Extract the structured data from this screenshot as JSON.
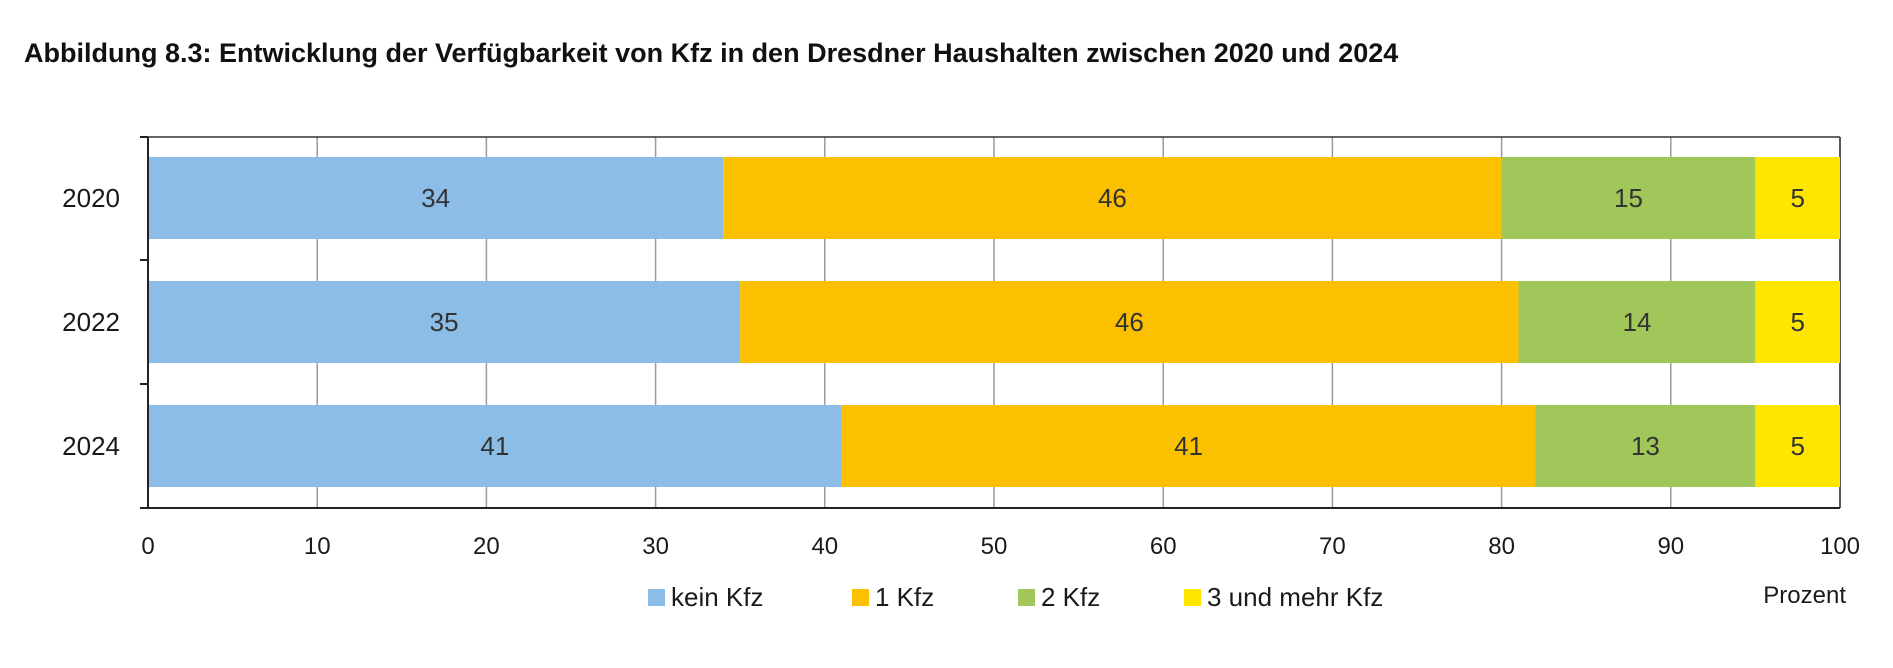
{
  "title": "Abbildung 8.3: Entwicklung der Verfügbarkeit von Kfz in den Dresdner Haushalten zwischen 2020 und 2024",
  "chart_data": {
    "type": "bar",
    "orientation": "horizontal",
    "stacked": true,
    "categories": [
      "2020",
      "2022",
      "2024"
    ],
    "series": [
      {
        "name": "kein Kfz",
        "color": "#8bbde6",
        "values": [
          34,
          35,
          41
        ]
      },
      {
        "name": "1 Kfz",
        "color": "#fbc000",
        "values": [
          46,
          46,
          41
        ]
      },
      {
        "name": "2 Kfz",
        "color": "#a1c65a",
        "values": [
          15,
          14,
          13
        ]
      },
      {
        "name": "3 und mehr Kfz",
        "color": "#ffe600",
        "values": [
          5,
          5,
          5
        ]
      }
    ],
    "xlim": [
      0,
      100
    ],
    "xticks": [
      0,
      10,
      20,
      30,
      40,
      50,
      60,
      70,
      80,
      90,
      100
    ],
    "xlabel": "Prozent",
    "grid": true,
    "legend": "bottom"
  }
}
